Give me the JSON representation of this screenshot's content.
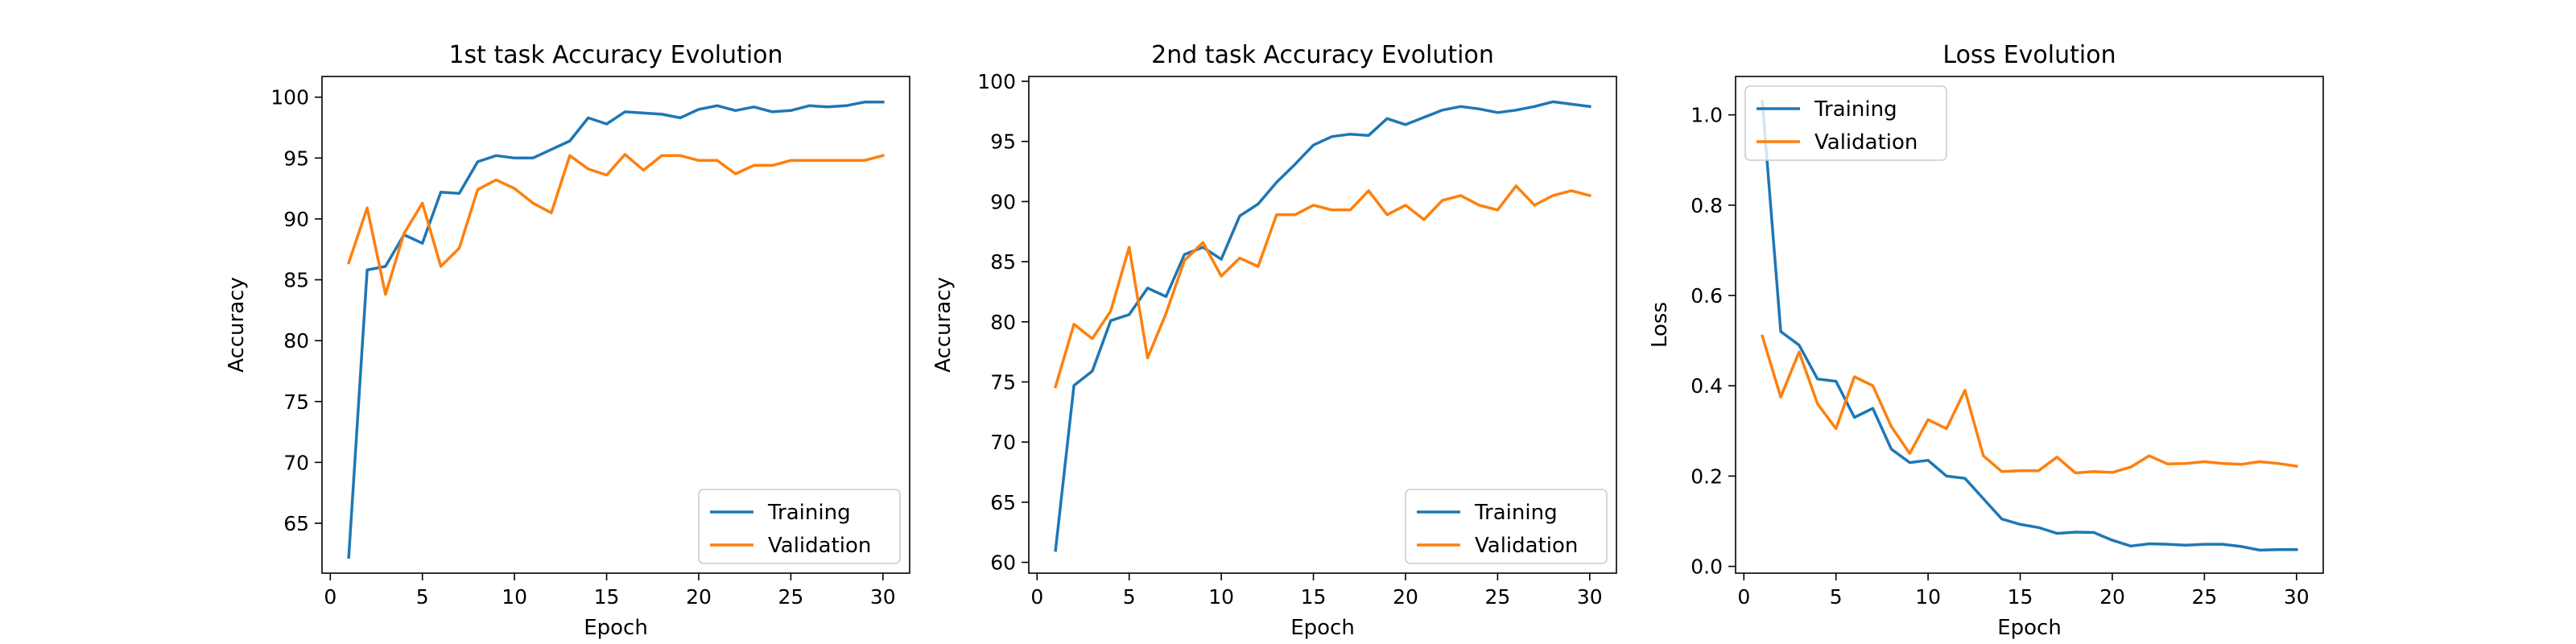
{
  "colors": {
    "training": "#1f77b4",
    "validation": "#ff7f0e"
  },
  "chart_data": [
    {
      "type": "line",
      "title": "1st task Accuracy Evolution",
      "xlabel": "Epoch",
      "ylabel": "Accuracy",
      "xlim": [
        -0.45,
        31.45
      ],
      "ylim": [
        60.9,
        101.7
      ],
      "xticks": [
        0,
        5,
        10,
        15,
        20,
        25,
        30
      ],
      "yticks": [
        65,
        70,
        75,
        80,
        85,
        90,
        95,
        100
      ],
      "legend": "lower-right",
      "grid": false,
      "x": [
        1,
        2,
        3,
        4,
        5,
        6,
        7,
        8,
        9,
        10,
        11,
        12,
        13,
        14,
        15,
        16,
        17,
        18,
        19,
        20,
        21,
        22,
        23,
        24,
        25,
        26,
        27,
        28,
        29,
        30
      ],
      "series": [
        {
          "name": "Training",
          "values": [
            62.2,
            85.8,
            86.1,
            88.7,
            88.0,
            92.2,
            92.1,
            94.7,
            95.2,
            95.0,
            95.0,
            95.7,
            96.4,
            98.3,
            97.8,
            98.8,
            98.7,
            98.6,
            98.3,
            99.0,
            99.3,
            98.9,
            99.2,
            98.8,
            98.9,
            99.3,
            99.2,
            99.3,
            99.6,
            99.6
          ]
        },
        {
          "name": "Validation",
          "values": [
            86.4,
            90.9,
            83.8,
            88.8,
            91.3,
            86.1,
            87.6,
            92.4,
            93.2,
            92.5,
            91.3,
            90.5,
            95.2,
            94.1,
            93.6,
            95.3,
            94.0,
            95.2,
            95.2,
            94.8,
            94.8,
            93.7,
            94.4,
            94.4,
            94.8,
            94.8,
            94.8,
            94.8,
            94.8,
            95.2
          ]
        }
      ]
    },
    {
      "type": "line",
      "title": "2nd task Accuracy Evolution",
      "xlabel": "Epoch",
      "ylabel": "Accuracy",
      "xlim": [
        -0.45,
        31.45
      ],
      "ylim": [
        59.1,
        100.4
      ],
      "xticks": [
        0,
        5,
        10,
        15,
        20,
        25,
        30
      ],
      "yticks": [
        60,
        65,
        70,
        75,
        80,
        85,
        90,
        95,
        100
      ],
      "legend": "lower-right",
      "grid": false,
      "x": [
        1,
        2,
        3,
        4,
        5,
        6,
        7,
        8,
        9,
        10,
        11,
        12,
        13,
        14,
        15,
        16,
        17,
        18,
        19,
        20,
        21,
        22,
        23,
        24,
        25,
        26,
        27,
        28,
        29,
        30
      ],
      "series": [
        {
          "name": "Training",
          "values": [
            61.0,
            74.7,
            75.9,
            80.1,
            80.6,
            82.8,
            82.1,
            85.6,
            86.2,
            85.2,
            88.8,
            89.8,
            91.6,
            93.1,
            94.7,
            95.4,
            95.6,
            95.5,
            96.9,
            96.4,
            97.0,
            97.6,
            97.9,
            97.7,
            97.4,
            97.6,
            97.9,
            98.3,
            98.1,
            97.9
          ]
        },
        {
          "name": "Validation",
          "values": [
            74.6,
            79.8,
            78.6,
            80.9,
            86.2,
            77.0,
            80.7,
            85.1,
            86.6,
            83.8,
            85.3,
            84.6,
            88.9,
            88.9,
            89.7,
            89.3,
            89.3,
            90.9,
            88.9,
            89.7,
            88.5,
            90.1,
            90.5,
            89.7,
            89.3,
            91.3,
            89.7,
            90.5,
            90.9,
            90.5
          ]
        }
      ]
    },
    {
      "type": "line",
      "title": "Loss Evolution",
      "xlabel": "Epoch",
      "ylabel": "Loss",
      "xlim": [
        -0.45,
        31.45
      ],
      "ylim": [
        -0.015,
        1.085
      ],
      "xticks": [
        0,
        5,
        10,
        15,
        20,
        25,
        30
      ],
      "yticks": [
        0.0,
        0.2,
        0.4,
        0.6,
        0.8,
        1.0
      ],
      "legend": "top-left",
      "grid": false,
      "x": [
        1,
        2,
        3,
        4,
        5,
        6,
        7,
        8,
        9,
        10,
        11,
        12,
        13,
        14,
        15,
        16,
        17,
        18,
        19,
        20,
        21,
        22,
        23,
        24,
        25,
        26,
        27,
        28,
        29,
        30
      ],
      "series": [
        {
          "name": "Training",
          "values": [
            1.03,
            0.52,
            0.49,
            0.415,
            0.41,
            0.33,
            0.35,
            0.26,
            0.23,
            0.235,
            0.2,
            0.195,
            0.15,
            0.105,
            0.093,
            0.086,
            0.073,
            0.076,
            0.075,
            0.058,
            0.045,
            0.05,
            0.049,
            0.047,
            0.049,
            0.049,
            0.044,
            0.036,
            0.037,
            0.037
          ]
        },
        {
          "name": "Validation",
          "values": [
            0.51,
            0.375,
            0.475,
            0.36,
            0.305,
            0.42,
            0.4,
            0.31,
            0.25,
            0.325,
            0.305,
            0.39,
            0.245,
            0.21,
            0.212,
            0.212,
            0.242,
            0.207,
            0.21,
            0.208,
            0.22,
            0.245,
            0.227,
            0.228,
            0.232,
            0.228,
            0.226,
            0.232,
            0.228,
            0.222
          ]
        }
      ]
    }
  ]
}
